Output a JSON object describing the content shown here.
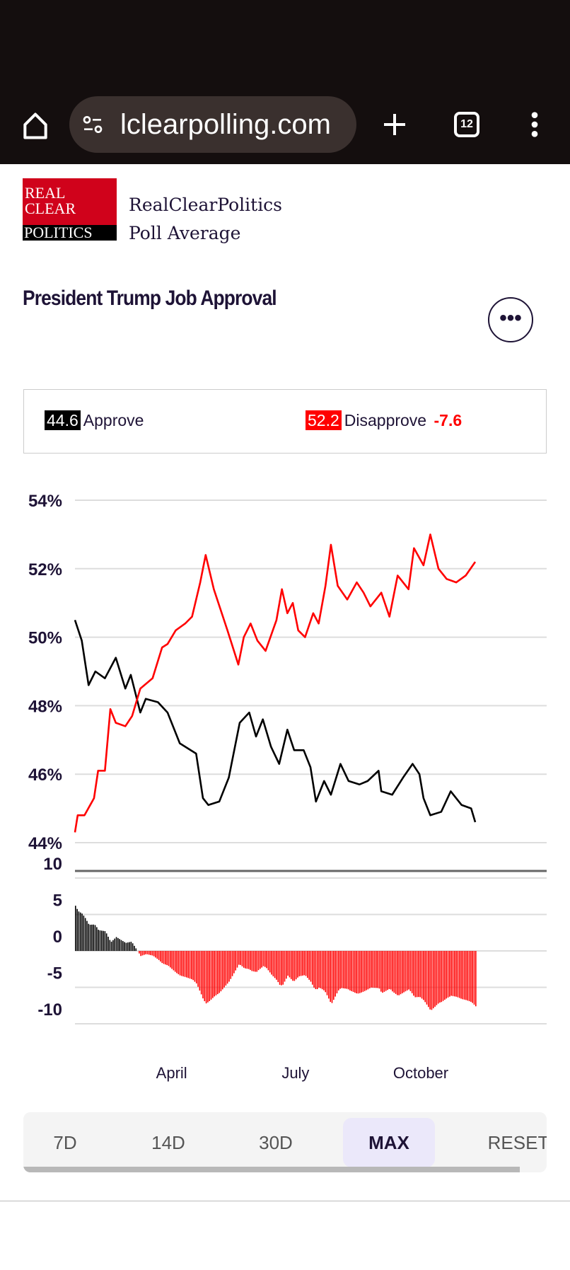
{
  "browser": {
    "url": "lclearpolling.com",
    "tab_count": "12"
  },
  "logo": {
    "line1": "REAL",
    "line2": "CLEAR",
    "line3": "POLITICS"
  },
  "brand": {
    "line1": "RealClearPolitics",
    "line2": "Poll Average"
  },
  "title": "President Trump Job Approval",
  "legend": {
    "approve_value": "44.6",
    "approve_label": "Approve",
    "disapprove_value": "52.2",
    "disapprove_label": "Disapprove",
    "spread": "-7.6"
  },
  "colors": {
    "approve": "#000000",
    "disapprove": "#ff0000",
    "text": "#1e1336"
  },
  "range_buttons": [
    {
      "label": "7D"
    },
    {
      "label": "14D"
    },
    {
      "label": "30D"
    },
    {
      "label": "MAX",
      "active": true
    },
    {
      "label": "RESET"
    }
  ],
  "chart_data": {
    "type": "line",
    "title": "President Trump Job Approval",
    "ylim": [
      44,
      54
    ],
    "y_ticks": [
      "54%",
      "52%",
      "50%",
      "48%",
      "46%",
      "44%"
    ],
    "y_tick_values": [
      54,
      52,
      50,
      48,
      46,
      44
    ],
    "x_range_days": [
      0,
      294
    ],
    "x_ticks": [
      {
        "label": "April",
        "day": 71
      },
      {
        "label": "July",
        "day": 162
      },
      {
        "label": "October",
        "day": 254
      }
    ],
    "series": [
      {
        "name": "Approve",
        "color": "#000000",
        "x": [
          0,
          5,
          10,
          15,
          22,
          30,
          37,
          41,
          48,
          52,
          61,
          68,
          77,
          89,
          94,
          98,
          106,
          113,
          121,
          128,
          133,
          138,
          144,
          150,
          156,
          161,
          168,
          173,
          177,
          183,
          188,
          195,
          201,
          209,
          215,
          223,
          225,
          233,
          241,
          248,
          253,
          256,
          261,
          269,
          276,
          284,
          291,
          294
        ],
        "values": [
          50.5,
          49.9,
          48.6,
          49.0,
          48.8,
          49.4,
          48.5,
          48.9,
          47.8,
          48.2,
          48.1,
          47.8,
          46.9,
          46.6,
          45.3,
          45.1,
          45.2,
          45.9,
          47.5,
          47.8,
          47.1,
          47.6,
          46.8,
          46.3,
          47.3,
          46.7,
          46.7,
          46.2,
          45.2,
          45.8,
          45.4,
          46.3,
          45.8,
          45.7,
          45.8,
          46.1,
          45.5,
          45.4,
          45.9,
          46.3,
          46.0,
          45.3,
          44.8,
          44.9,
          45.5,
          45.1,
          45.0,
          44.6
        ]
      },
      {
        "name": "Disapprove",
        "color": "#ff0000",
        "x": [
          0,
          2,
          7,
          14,
          17,
          22,
          26,
          30,
          37,
          42,
          48,
          57,
          64,
          68,
          74,
          81,
          86,
          92,
          96,
          102,
          112,
          120,
          124,
          129,
          134,
          140,
          148,
          152,
          156,
          160,
          164,
          169,
          175,
          179,
          184,
          188,
          193,
          200,
          207,
          212,
          217,
          225,
          231,
          237,
          245,
          249,
          256,
          261,
          267,
          273,
          280,
          287,
          294
        ],
        "values": [
          44.3,
          44.8,
          44.8,
          45.3,
          46.1,
          46.1,
          47.9,
          47.5,
          47.4,
          47.7,
          48.5,
          48.8,
          49.7,
          49.8,
          50.2,
          50.4,
          50.6,
          51.6,
          52.4,
          51.4,
          50.2,
          49.2,
          50.0,
          50.4,
          49.9,
          49.6,
          50.5,
          51.4,
          50.7,
          51.0,
          50.2,
          50.0,
          50.7,
          50.4,
          51.5,
          52.7,
          51.5,
          51.1,
          51.6,
          51.3,
          50.9,
          51.3,
          50.6,
          51.8,
          51.4,
          52.6,
          52.1,
          53.0,
          52.0,
          51.7,
          51.6,
          51.8,
          52.2
        ]
      }
    ],
    "spread_panel": {
      "type": "bar",
      "description_of_values": "Approve minus Disapprove",
      "ylim": [
        -10,
        10
      ],
      "y_ticks": [
        "10",
        "5",
        "0",
        "-5",
        "-10"
      ],
      "y_tick_values": [
        10,
        5,
        0,
        -5,
        -10
      ]
    }
  }
}
